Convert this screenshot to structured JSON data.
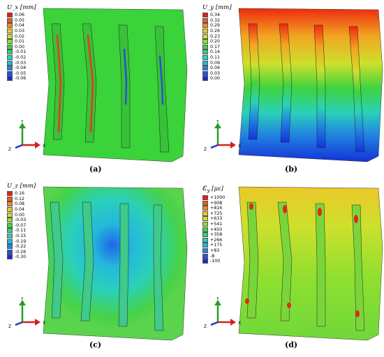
{
  "panels": [
    {
      "id": "a",
      "caption": "(a)",
      "legend_title": "U_x [mm]",
      "legend_values": [
        "0.06",
        "0.05",
        "0.04",
        "0.03",
        "0.02",
        "0.01",
        "0.00",
        "-0.01",
        "-0.02",
        "-0.03",
        "-0.04",
        "-0.05",
        "-0.06"
      ],
      "field": "flat-green with red/blue stringers",
      "colors": {
        "plate": "#3ad33a",
        "stringer_left": "#d24a1a",
        "stringer_right": "#2a4fd8"
      }
    },
    {
      "id": "b",
      "caption": "(b)",
      "legend_title": "U_y [mm]",
      "legend_values": [
        "0.34",
        "0.32",
        "0.29",
        "0.26",
        "0.23",
        "0.20",
        "0.17",
        "0.14",
        "0.11",
        "0.09",
        "0.06",
        "0.03",
        "0.00"
      ],
      "field": "vertical gradient red top to blue bottom",
      "colors": {
        "top": "#ee2a10",
        "bottom": "#1433d8"
      }
    },
    {
      "id": "c",
      "caption": "(c)",
      "legend_title": "U_z [mm]",
      "legend_values": [
        "0.16",
        "0.12",
        "0.08",
        "0.04",
        "0.00",
        "-0.03",
        "-0.07",
        "-0.11",
        "-0.15",
        "-0.19",
        "-0.22",
        "-0.26",
        "-0.30"
      ],
      "field": "green with cyan/blue bulge",
      "colors": {
        "plate": "#46d24a",
        "bulge": "#1f66e8"
      }
    },
    {
      "id": "d",
      "caption": "(d)",
      "legend_title_symbol": "ε",
      "legend_title_sub": "y",
      "legend_title_unit": "[με]",
      "legend_values": [
        "+1000",
        "+908",
        "+816",
        "+725",
        "+633",
        "+541",
        "+450",
        "+358",
        "+266",
        "+175",
        "+83",
        "-8",
        "-100"
      ],
      "field": "yellow-green strain with red hot spots",
      "colors": {
        "plate": "#9bdf2c",
        "hot": "#e02a14"
      }
    }
  ],
  "axis_triad": {
    "x": "X",
    "y": "Y",
    "z": "Z",
    "x_color": "#d42020",
    "y_color": "#22a022",
    "z_color": "#2233cc"
  },
  "legend_colors": [
    "#e61e14",
    "#f2561a",
    "#f28a22",
    "#ecc72a",
    "#cde02c",
    "#8fdf2f",
    "#3fd33f",
    "#30d27e",
    "#2ad1b8",
    "#25b7dd",
    "#2186e0",
    "#1d55df",
    "#1a28d6"
  ]
}
